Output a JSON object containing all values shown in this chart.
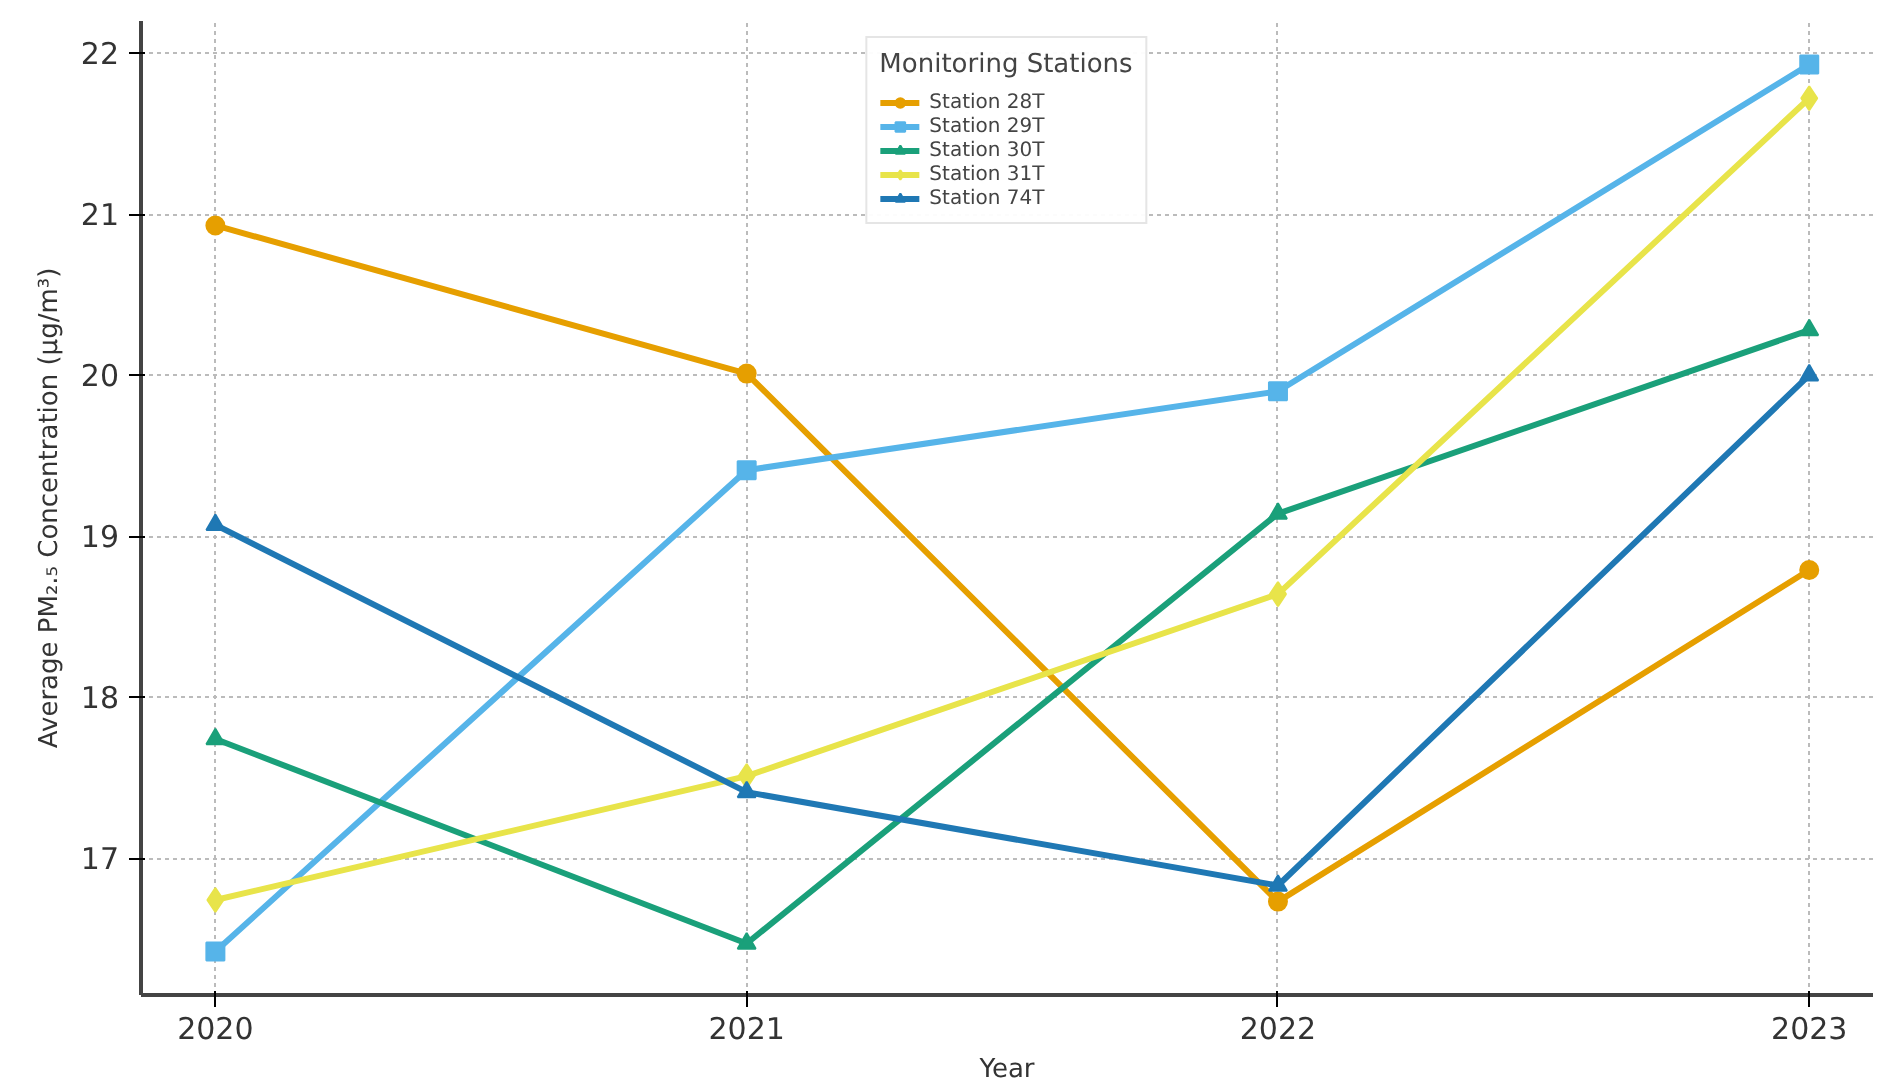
{
  "chart_data": {
    "type": "line",
    "xlabel": "Year",
    "ylabel": "Average PM₂.₅ Concentration (µg/m³)",
    "legend_title": "Monitoring Stations",
    "x": [
      2020,
      2021,
      2022,
      2023
    ],
    "xlim": [
      2019.86,
      2023.12
    ],
    "xticks": [
      2020,
      2021,
      2022,
      2023
    ],
    "ylim": [
      16.15,
      22.2
    ],
    "yticks": [
      17,
      18,
      19,
      20,
      21,
      22
    ],
    "grid": true,
    "legend": "top",
    "line_style": "solid",
    "series": [
      {
        "name": "Station 28T",
        "color": "#e69f00",
        "marker": "circle",
        "values": [
          20.93,
          20.01,
          16.73,
          18.79
        ]
      },
      {
        "name": "Station 29T",
        "color": "#56b4e9",
        "marker": "square",
        "values": [
          16.42,
          19.41,
          19.9,
          21.93
        ]
      },
      {
        "name": "Station 30T",
        "color": "#1aa07a",
        "marker": "triangle",
        "values": [
          17.74,
          16.47,
          19.14,
          20.28
        ]
      },
      {
        "name": "Station 31T",
        "color": "#e8e44a",
        "marker": "diamond",
        "values": [
          16.74,
          17.51,
          18.64,
          21.72
        ]
      },
      {
        "name": "Station 74T",
        "color": "#1f78b4",
        "marker": "triangle",
        "values": [
          19.07,
          17.41,
          16.83,
          20.0
        ]
      }
    ]
  }
}
